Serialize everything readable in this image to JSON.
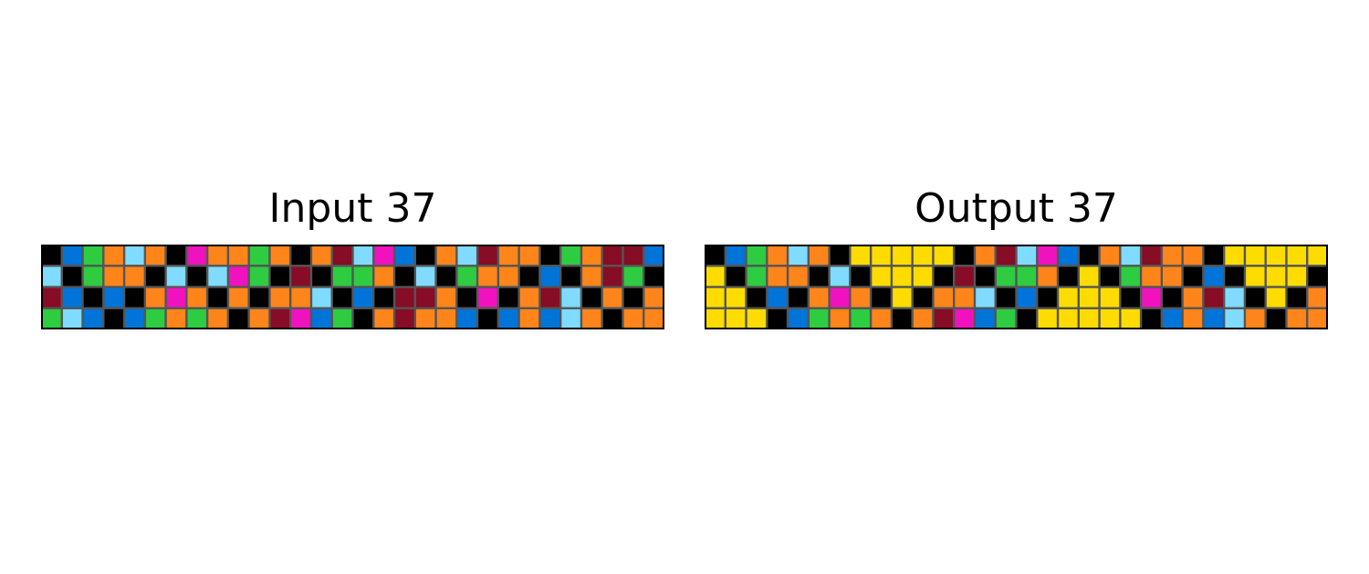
{
  "input": {
    "title": "Input 37",
    "rows": [
      [
        0,
        1,
        3,
        7,
        8,
        7,
        0,
        6,
        7,
        7,
        3,
        7,
        0,
        7,
        9,
        8,
        6,
        1,
        0,
        7,
        8,
        9,
        7,
        7,
        0,
        3,
        7,
        9,
        9,
        1
      ],
      [
        8,
        0,
        3,
        7,
        7,
        0,
        8,
        0,
        8,
        6,
        3,
        0,
        9,
        0,
        3,
        3,
        7,
        0,
        8,
        0,
        3,
        7,
        7,
        0,
        1,
        0,
        7,
        9,
        3,
        0
      ],
      [
        9,
        1,
        0,
        1,
        0,
        7,
        6,
        7,
        0,
        7,
        0,
        7,
        7,
        8,
        0,
        1,
        0,
        9,
        9,
        7,
        0,
        6,
        0,
        7,
        9,
        8,
        0,
        7,
        0,
        7
      ],
      [
        3,
        8,
        1,
        0,
        1,
        3,
        7,
        3,
        7,
        0,
        7,
        9,
        6,
        1,
        3,
        0,
        7,
        9,
        7,
        7,
        1,
        0,
        1,
        7,
        1,
        8,
        7,
        0,
        7,
        7
      ]
    ]
  },
  "output": {
    "title": "Output 37",
    "rows": [
      [
        0,
        1,
        3,
        7,
        8,
        7,
        0,
        4,
        4,
        4,
        4,
        4,
        0,
        7,
        9,
        8,
        6,
        1,
        0,
        7,
        8,
        9,
        7,
        7,
        0,
        4,
        4,
        4,
        4,
        4
      ],
      [
        4,
        0,
        3,
        7,
        7,
        0,
        8,
        0,
        4,
        4,
        4,
        0,
        9,
        0,
        3,
        3,
        7,
        0,
        4,
        0,
        3,
        7,
        7,
        0,
        1,
        0,
        4,
        4,
        4,
        0
      ],
      [
        4,
        4,
        0,
        1,
        0,
        7,
        6,
        7,
        0,
        4,
        0,
        7,
        7,
        8,
        0,
        1,
        0,
        4,
        4,
        4,
        0,
        6,
        0,
        7,
        9,
        8,
        0,
        4,
        0,
        7
      ],
      [
        4,
        4,
        4,
        0,
        1,
        3,
        7,
        3,
        7,
        0,
        7,
        9,
        6,
        1,
        3,
        0,
        4,
        4,
        4,
        4,
        4,
        0,
        1,
        7,
        1,
        8,
        7,
        0,
        7,
        7
      ]
    ]
  },
  "palette": {
    "0": "#000000",
    "1": "#0074D9",
    "3": "#2ECC40",
    "4": "#FFDC00",
    "6": "#F012BE",
    "7": "#FF851B",
    "8": "#7FDBFF",
    "9": "#870C25"
  },
  "grid_line_color": "#555555",
  "border_color": "#000000"
}
